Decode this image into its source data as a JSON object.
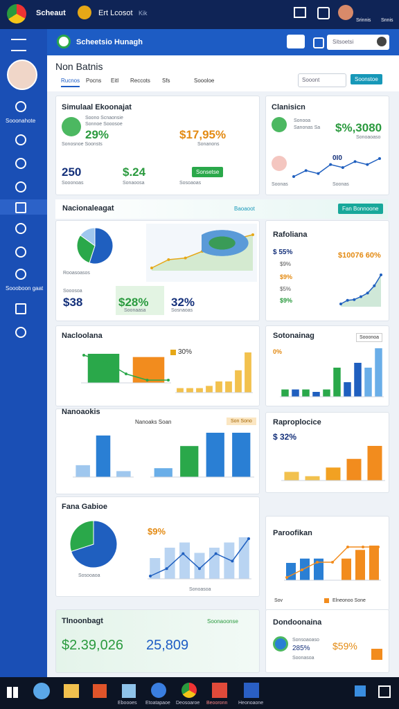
{
  "browser": {
    "tab1": "Scheaut",
    "tab2": "Ert Lcosot",
    "tab3": "Kik",
    "account1": "Srinnis",
    "account2": "Snnis"
  },
  "app_header": {
    "title": "Scheetsio Hunagh",
    "search": "Sitsoetsi"
  },
  "sidebar": {
    "items": [
      "Sooonahote",
      "Soooboon gaat"
    ]
  },
  "page": {
    "title": "Non Batnis",
    "tabs": [
      "Rucnos",
      "Pocns",
      "Eitl",
      "Reccots",
      "Sfs",
      "Soooloe"
    ],
    "search": "Sooont",
    "button": "Soonstoe"
  },
  "card_overview": {
    "title": "Simulaal Ekoonajat",
    "caption1": "Soono Scnaonsie",
    "caption2": "Sonnoe Sooosoe",
    "metric1": "29%",
    "label1": "Sonosnoe Soonsts",
    "metric2": "$17,95%",
    "label2": "Sonanons",
    "metric3": "250",
    "label3": "Sooonoas",
    "metric4": "$.24",
    "label4": "Sonaoosa",
    "label5": "Sosoaoas",
    "button": "Sonsetse"
  },
  "card_class": {
    "title": "Clanisicn",
    "caption1": "Sonooa",
    "caption2": "Sanonas Sa",
    "metric1": "$%,3080",
    "label1": "Sonoaoaso",
    "metric2": "0I0",
    "label2": "Soonas",
    "label3": "Soonas",
    "chart": {
      "type": "line",
      "values": [
        2,
        4,
        3,
        6,
        5,
        7,
        6,
        8
      ],
      "color": "#1f5fbf"
    }
  },
  "section": {
    "title": "Nacionaleagat",
    "link": "Baoaoot",
    "button": "Fan Bonnoone"
  },
  "card_national": {
    "caption": "Rooasoasos",
    "metric1": "$38",
    "label1": "Sooosoa",
    "metric2": "$28%",
    "label2": "Soonaasa",
    "metric3": "32%",
    "label3": "Sosnaoas",
    "pie": {
      "type": "pie",
      "values": [
        55,
        30,
        15
      ],
      "colors": [
        "#1f5fbf",
        "#2aa84a",
        "#9fc7ee"
      ]
    },
    "chart": {
      "type": "area",
      "values": [
        2,
        3,
        3.2,
        4,
        4.4,
        5.5,
        6
      ],
      "color": "#e6a817",
      "fill": "#d4ead0"
    }
  },
  "card_ratio": {
    "title": "Rafoliana",
    "items": [
      "$ 55%",
      "$9%",
      "$9%",
      "$5%",
      "$9%"
    ],
    "headline": "$10076 60%",
    "chart": {
      "type": "area",
      "values": [
        1,
        2,
        2.2,
        3,
        4,
        6,
        9
      ],
      "color": "#1f5fbf",
      "fill": "#cfe8d8"
    }
  },
  "card_nacl": {
    "title": "Nacloolana",
    "metric": "30%",
    "line": {
      "type": "line",
      "values": [
        8,
        7,
        5,
        4,
        4
      ],
      "color": "#2aa84a"
    },
    "bars": {
      "type": "bar",
      "values": [
        9,
        8
      ],
      "colors": [
        "#2aa84a",
        "#f28c1e"
      ]
    },
    "chart": {
      "type": "bar",
      "values": [
        1,
        1,
        1,
        1.5,
        2.5,
        2.5,
        5,
        9
      ],
      "color": "#f2c14e"
    }
  },
  "card_stock": {
    "title": "Sotonainag",
    "button": "Sooonoa",
    "metric": "0%",
    "chart": {
      "type": "bar",
      "values": [
        1.5,
        1.5,
        1.5,
        1,
        1.5,
        6,
        3,
        7,
        6,
        10
      ],
      "colors": [
        "#2aa84a",
        "#1f5fbf",
        "#2aa84a",
        "#1f5fbf",
        "#2aa84a",
        "#2aa84a",
        "#1f5fbf",
        "#1f5fbf",
        "#6aaee8",
        "#6aaee8"
      ]
    }
  },
  "card_nano": {
    "title": "Nanoaokis",
    "subtitle": "Nanoaks Soan",
    "badge": "Son Sono",
    "chart1": {
      "type": "bar",
      "values": [
        2,
        7,
        1
      ],
      "colors": [
        "#9fc7ee",
        "#2a7fd4",
        "#9fc7ee"
      ]
    },
    "chart2": {
      "type": "bar",
      "values": [
        2,
        7,
        10,
        10
      ],
      "colors": [
        "#6aaee8",
        "#2aa84a",
        "#2a7fd4",
        "#2a7fd4"
      ]
    }
  },
  "card_rep": {
    "title": "Raproplocice",
    "metric": "$ 32%",
    "chart": {
      "type": "bar",
      "values": [
        2,
        1,
        3,
        5,
        8
      ],
      "colors": [
        "#f2c14e",
        "#f2c14e",
        "#f2a122",
        "#f28c1e",
        "#f28c1e"
      ]
    }
  },
  "card_fana": {
    "title": "Fana Gabioe",
    "caption": "Sosooaoa",
    "metric": "$9%",
    "label": "Sonoasoa",
    "pie": {
      "type": "pie",
      "values": [
        70,
        30
      ],
      "colors": [
        "#1f5fbf",
        "#2aa84a"
      ]
    },
    "bars": {
      "type": "bar",
      "values": [
        4,
        6,
        7,
        5,
        6,
        7,
        8
      ],
      "color": "#b9d4f2"
    },
    "line": {
      "type": "line",
      "values": [
        5,
        6,
        8,
        6,
        8,
        7,
        10
      ],
      "color": "#1f5fbf"
    }
  },
  "card_paro": {
    "title": "Paroofikan",
    "legend1": "Sov",
    "legend2": "Elneonoo Sone",
    "bars": {
      "type": "bar",
      "values": [
        4,
        5,
        5,
        3,
        5,
        7,
        8
      ],
      "colors": [
        "#2a7fd4",
        "#2a7fd4",
        "#2a7fd4",
        "#ffffff",
        "#f28c1e",
        "#f28c1e",
        "#f28c1e"
      ]
    },
    "line": {
      "type": "line",
      "values": [
        4,
        5,
        6,
        6,
        8,
        8,
        8
      ],
      "color": "#f28c1e"
    }
  },
  "card_total": {
    "title": "Tlnoonbagt",
    "link": "Soonaoonse",
    "metric1": "$2.39,026",
    "metric2": "25,809"
  },
  "card_dond": {
    "title": "Dondoonaina",
    "label1": "Sonsoaoaso",
    "metric1": "285%",
    "label2": "Soonasoa",
    "metric2": "$59%"
  },
  "taskbar": {
    "apps": [
      "Eboooes",
      "Etoatapaoe",
      "Deosoaroe",
      "Beooronn",
      "Heonoaone"
    ]
  }
}
